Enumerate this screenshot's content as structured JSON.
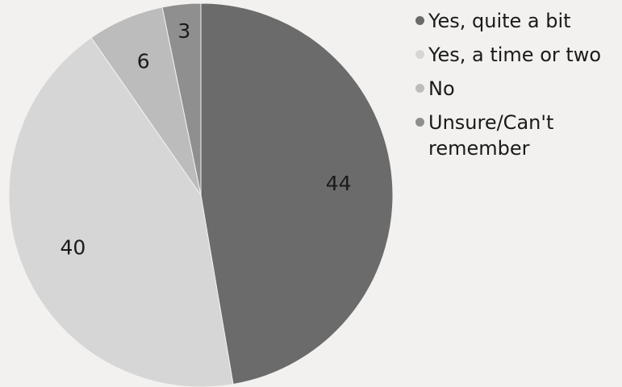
{
  "chart_data": {
    "type": "pie",
    "title": "",
    "start_angle_deg": 0,
    "direction": "clockwise",
    "legend_position": "right",
    "slices": [
      {
        "label": "Yes, quite a bit",
        "value": 44,
        "value_label": "44",
        "color": "#6b6b6b"
      },
      {
        "label": "Yes, a time or two",
        "value": 40,
        "value_label": "40",
        "color": "#d6d6d6"
      },
      {
        "label": "No",
        "value": 6,
        "value_label": "6",
        "color": "#bcbcbc"
      },
      {
        "label": "Unsure/Can't remember",
        "value": 3,
        "value_label": "3",
        "color": "#8f8f8f"
      }
    ]
  }
}
